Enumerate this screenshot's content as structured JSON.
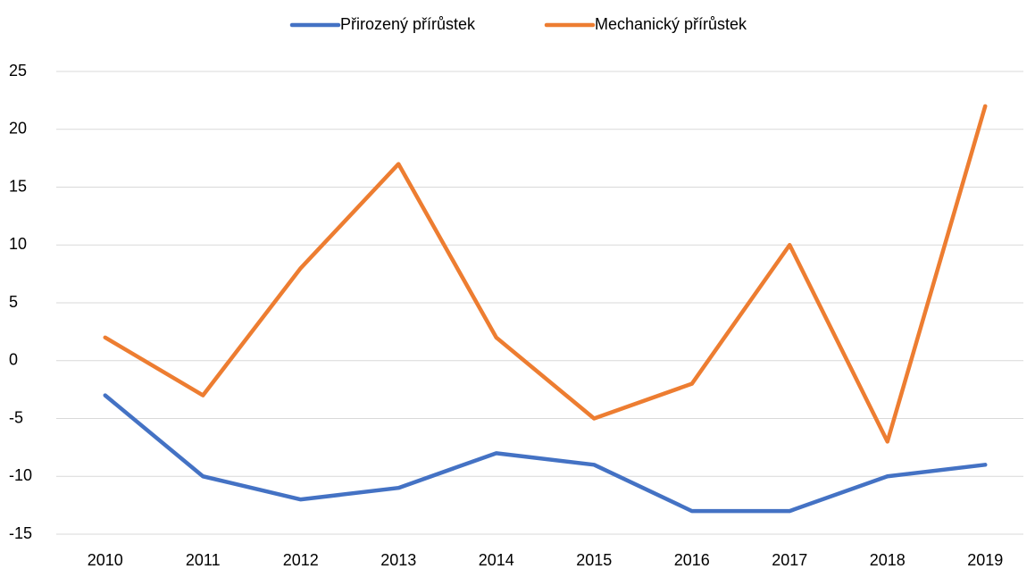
{
  "chart_data": {
    "type": "line",
    "categories": [
      "2010",
      "2011",
      "2012",
      "2013",
      "2014",
      "2015",
      "2016",
      "2017",
      "2018",
      "2019"
    ],
    "series": [
      {
        "name": "Přirozený přírůstek",
        "color": "#4472c4",
        "values": [
          -3,
          -10,
          -12,
          -11,
          -8,
          -9,
          -13,
          -13,
          -10,
          -9
        ]
      },
      {
        "name": "Mechanický přírůstek",
        "color": "#ed7d31",
        "values": [
          2,
          -3,
          8,
          17,
          2,
          -5,
          -2,
          10,
          -7,
          22
        ]
      }
    ],
    "ylim": [
      -15,
      25
    ],
    "yticks": [
      -15,
      -10,
      -5,
      0,
      5,
      10,
      15,
      20,
      25
    ],
    "grid": true,
    "legend": "top"
  }
}
